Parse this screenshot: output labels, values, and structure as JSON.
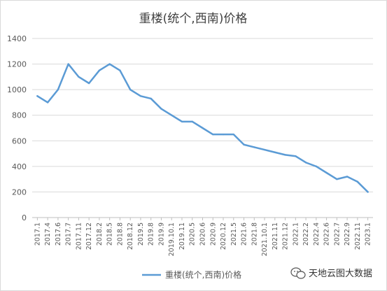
{
  "chart_data": {
    "type": "line",
    "title": "重楼(统个,西南)价格",
    "xlabel": "",
    "ylabel": "",
    "ylim": [
      0,
      1400
    ],
    "yticks": [
      0,
      200,
      400,
      600,
      800,
      1000,
      1200,
      1400
    ],
    "grid": "horizontal",
    "legend_position": "bottom",
    "color": "#5b9bd5",
    "x": [
      "2017.1",
      "2017.4",
      "2017.6",
      "2017.7",
      "2017.11",
      "2017.12",
      "2018.2",
      "2018.5",
      "2018.8",
      "2018.12",
      "2019.5",
      "2019.8",
      "2019.9",
      "2019.10.1",
      "2019.11",
      "2020.5",
      "2020.6",
      "2020.9",
      "2020.12",
      "2021.5",
      "2021.6",
      "2021.8",
      "2021.10.1",
      "2021.11",
      "2021.12",
      "2022.1",
      "2022.2",
      "2022.4",
      "2022.6",
      "2022.7",
      "2022.9",
      "2022.11",
      "2023.1"
    ],
    "series": [
      {
        "name": "重楼(统个,西南)价格",
        "values": [
          950,
          900,
          1000,
          1200,
          1100,
          1050,
          1150,
          1200,
          1150,
          1000,
          950,
          930,
          850,
          800,
          750,
          750,
          700,
          650,
          650,
          650,
          570,
          550,
          530,
          510,
          490,
          480,
          430,
          400,
          350,
          300,
          320,
          280,
          200
        ]
      }
    ]
  },
  "watermark": {
    "text": "天地云图大数据",
    "icon": "wechat-icon"
  }
}
